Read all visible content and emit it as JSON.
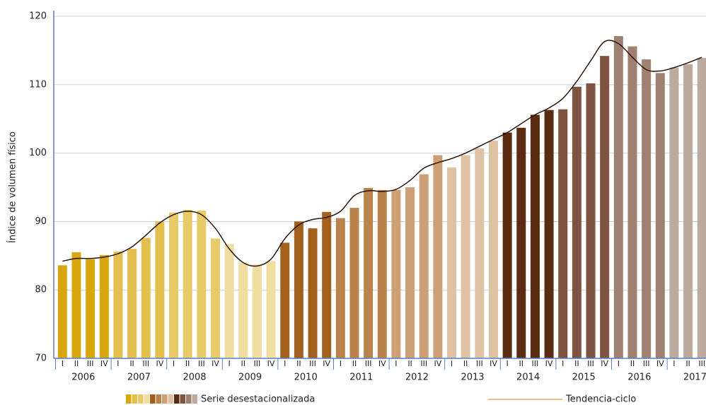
{
  "chart_data": {
    "type": "bar",
    "y_label": "Índice de volumen físico",
    "categories": [
      "I",
      "II",
      "III",
      "IV",
      "I",
      "II",
      "III",
      "IV",
      "I",
      "II",
      "III",
      "IV",
      "I",
      "II",
      "III",
      "IV",
      "I",
      "II",
      "III",
      "IV",
      "I",
      "II",
      "III",
      "IV",
      "I",
      "II",
      "III",
      "IV",
      "I",
      "II",
      "III",
      "IV",
      "I",
      "II",
      "III",
      "IV",
      "I",
      "II",
      "III",
      "IV",
      "I",
      "II",
      "III",
      "IV",
      "I",
      "II",
      "III"
    ],
    "years": [
      "2006",
      "2007",
      "2008",
      "2009",
      "2010",
      "2011",
      "2012",
      "2013",
      "2014",
      "2015",
      "2016",
      "2017"
    ],
    "series": [
      {
        "name": "Serie desestacionalizada",
        "colors": [
          "#d8a70d",
          "#e3c04e",
          "#e8cb68",
          "#f0dda0",
          "#a1611d",
          "#b8844c",
          "#cca074",
          "#dfc2a4",
          "#5a2c12",
          "#7d5441",
          "#9e8171",
          "#bcaa9f"
        ],
        "values": [
          83.6,
          85.5,
          84.5,
          85.1,
          85.6,
          86.0,
          87.6,
          90.0,
          91.3,
          91.7,
          91.6,
          87.5,
          86.7,
          84.0,
          83.7,
          84.2,
          86.9,
          90.0,
          89.0,
          91.4,
          90.5,
          92.0,
          94.9,
          94.6,
          94.6,
          95.0,
          96.9,
          99.7,
          97.9,
          99.7,
          100.7,
          101.8,
          103.0,
          103.7,
          105.6,
          106.3,
          106.4,
          109.7,
          110.2,
          114.2,
          117.1,
          115.6,
          113.7,
          111.7,
          112.5,
          113.0,
          113.9
        ]
      },
      {
        "name": "Tendencia-ciclo",
        "color": "#2b1408",
        "values": [
          84.2,
          84.6,
          84.6,
          84.8,
          85.3,
          86.3,
          88.0,
          89.8,
          91.0,
          91.5,
          91.0,
          89.0,
          86.0,
          84.0,
          83.5,
          84.5,
          87.5,
          89.5,
          90.3,
          90.6,
          91.5,
          93.8,
          94.5,
          94.4,
          94.7,
          96.0,
          97.8,
          98.6,
          99.2,
          100.0,
          101.0,
          102.0,
          103.0,
          104.3,
          105.6,
          106.6,
          108.0,
          110.5,
          113.5,
          116.3,
          116.0,
          114.0,
          112.2,
          112.0,
          112.5,
          113.2,
          114.0
        ]
      }
    ],
    "ylim": [
      70,
      120
    ],
    "yticks": [
      70,
      80,
      90,
      100,
      110,
      120
    ],
    "grid": true
  }
}
